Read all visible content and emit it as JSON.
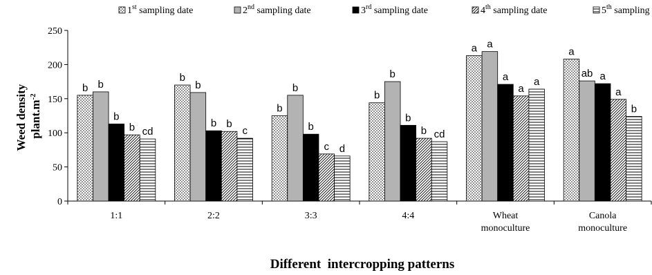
{
  "chart_data": {
    "type": "bar",
    "title": "",
    "xlabel": "Different  intercropping patterns",
    "ylabel": {
      "line1": "Weed density",
      "line2_text": "plant.m",
      "line2_sup": "-2"
    },
    "ylim": [
      0,
      250
    ],
    "yticks": [
      "0",
      "50",
      "100",
      "150",
      "200",
      "250"
    ],
    "grid": false,
    "legend_position": "top",
    "categories": [
      {
        "lines": [
          "1:1"
        ]
      },
      {
        "lines": [
          "2:2"
        ]
      },
      {
        "lines": [
          "3:3"
        ]
      },
      {
        "lines": [
          "4:4"
        ]
      },
      {
        "lines": [
          "Wheat",
          "monoculture"
        ]
      },
      {
        "lines": [
          "Canola",
          "monoculture"
        ]
      }
    ],
    "series": [
      {
        "legend": {
          "num": "1",
          "sup": "st",
          "text": "sampling  date"
        },
        "pattern": "dots",
        "values": [
          155,
          170,
          125,
          144,
          213,
          208
        ],
        "labels": [
          "b",
          "b",
          "b",
          "b",
          "a",
          "a"
        ]
      },
      {
        "legend": {
          "num": "2",
          "sup": "nd",
          "text": "sampling  date"
        },
        "pattern": "gray",
        "values": [
          160,
          159,
          155,
          175,
          219,
          176
        ],
        "labels": [
          "b",
          "b",
          "b",
          "b",
          "a",
          "ab"
        ]
      },
      {
        "legend": {
          "num": "3",
          "sup": "rd",
          "text": "sampling  date"
        },
        "pattern": "black",
        "values": [
          113,
          103,
          98,
          111,
          171,
          172
        ],
        "labels": [
          "b",
          "b",
          "b",
          "b",
          "a",
          "a"
        ]
      },
      {
        "legend": {
          "num": "4",
          "sup": "th",
          "text": "sampling  date"
        },
        "pattern": "diag",
        "values": [
          97,
          102,
          69,
          92,
          154,
          149
        ],
        "labels": [
          "b",
          "b",
          "c",
          "b",
          "a",
          "a"
        ]
      },
      {
        "legend": {
          "num": "5",
          "sup": "th",
          "text": "sampling  date"
        },
        "pattern": "hlines",
        "values": [
          91,
          92,
          66,
          87,
          164,
          124
        ],
        "labels": [
          "cd",
          "c",
          "d",
          "cd",
          "a",
          "b"
        ]
      }
    ]
  }
}
